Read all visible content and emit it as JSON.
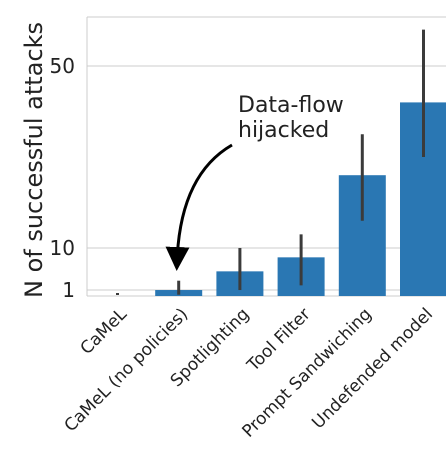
{
  "chart_data": {
    "type": "bar",
    "title": "",
    "xlabel": "",
    "ylabel": "N of successful attacks",
    "categories": [
      "CaMeL",
      "CaMeL (no policies)",
      "Spotlighting",
      "Tool Filter",
      "Prompt Sandwiching",
      "Undefended model"
    ],
    "values": [
      0,
      1,
      5,
      8,
      26,
      42
    ],
    "error_low": [
      0,
      0,
      1,
      2,
      16,
      30
    ],
    "error_high": [
      0,
      3,
      10,
      13,
      35,
      58
    ],
    "yticks": [
      1,
      10,
      50
    ],
    "ylim": [
      0,
      60
    ],
    "grid": "horizontal",
    "bar_color": "#2a77b3",
    "error_color": "#3b3b3b",
    "annotation": {
      "text_line1": "Data-flow",
      "text_line2": "hijacked",
      "target_category": "CaMeL (no policies)"
    }
  }
}
